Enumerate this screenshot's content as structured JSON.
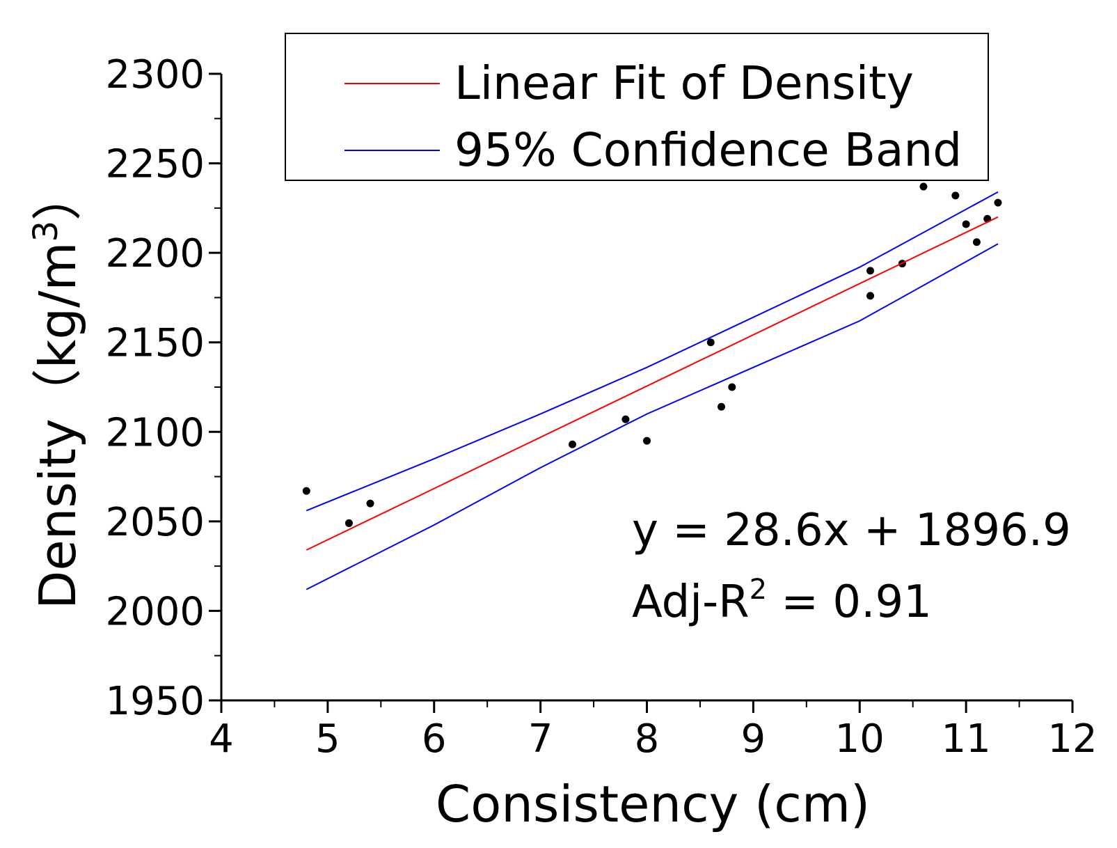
{
  "chart_data": {
    "type": "scatter",
    "title": "",
    "xlabel": "Consistency (cm)",
    "ylabel_main": "Density（kg/m",
    "ylabel_sup": "3",
    "ylabel_close": "）",
    "xlim": [
      4,
      12
    ],
    "ylim": [
      1950,
      2300
    ],
    "x_ticks": [
      4,
      5,
      6,
      7,
      8,
      9,
      10,
      11,
      12
    ],
    "x_tick_labels": [
      "4",
      "5",
      "6",
      "7",
      "8",
      "9",
      "10",
      "11",
      "12"
    ],
    "y_ticks": [
      1950,
      2000,
      2050,
      2100,
      2150,
      2200,
      2250,
      2300
    ],
    "y_tick_labels": [
      "1950",
      "2000",
      "2050",
      "2100",
      "2150",
      "2200",
      "2250",
      "2300"
    ],
    "series": [
      {
        "name": "Density",
        "kind": "points",
        "color": "#000000",
        "points": [
          [
            4.8,
            2067
          ],
          [
            5.2,
            2049
          ],
          [
            5.4,
            2060
          ],
          [
            7.3,
            2093
          ],
          [
            7.8,
            2107
          ],
          [
            8.0,
            2095
          ],
          [
            8.6,
            2150
          ],
          [
            8.7,
            2114
          ],
          [
            8.8,
            2125
          ],
          [
            10.1,
            2190
          ],
          [
            10.1,
            2176
          ],
          [
            10.4,
            2194
          ],
          [
            10.6,
            2237
          ],
          [
            10.9,
            2232
          ],
          [
            11.0,
            2216
          ],
          [
            11.1,
            2206
          ],
          [
            11.2,
            2219
          ],
          [
            11.3,
            2228
          ]
        ]
      },
      {
        "name": "Linear Fit of Density",
        "kind": "line",
        "color": "#ff0000",
        "points": [
          [
            4.8,
            2034
          ],
          [
            11.3,
            2220
          ]
        ]
      },
      {
        "name": "95% Confidence Band (upper)",
        "kind": "curve",
        "color": "#0000ff",
        "points": [
          [
            4.8,
            2056
          ],
          [
            6.0,
            2085
          ],
          [
            7.0,
            2110
          ],
          [
            8.0,
            2136
          ],
          [
            9.0,
            2164
          ],
          [
            10.0,
            2192
          ],
          [
            11.3,
            2234
          ]
        ]
      },
      {
        "name": "95% Confidence Band (lower)",
        "kind": "curve",
        "color": "#0000ff",
        "points": [
          [
            4.8,
            2012
          ],
          [
            6.0,
            2048
          ],
          [
            7.0,
            2080
          ],
          [
            8.0,
            2110
          ],
          [
            9.0,
            2136
          ],
          [
            10.0,
            2162
          ],
          [
            11.3,
            2205
          ]
        ]
      }
    ],
    "legend": {
      "position": "top",
      "entries": [
        {
          "label": "Linear Fit of Density",
          "color": "#ff0000"
        },
        {
          "label": "95% Confidence Band",
          "color": "#0000ff"
        }
      ]
    },
    "annotations": {
      "equation": "y = 28.6x + 1896.9",
      "r2_prefix": "Adj-R",
      "r2_sup": "2",
      "r2_suffix": " = 0.91"
    }
  }
}
